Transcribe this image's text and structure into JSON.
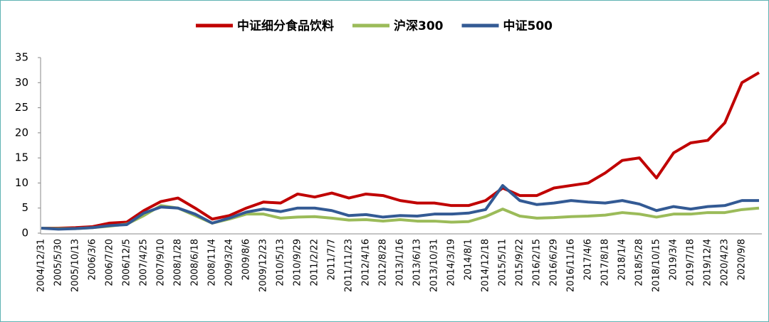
{
  "chart_data": {
    "type": "line",
    "categories": [
      "2004/12/31",
      "2005/5/30",
      "2005/10/13",
      "2006/3/6",
      "2006/7/20",
      "2006/12/5",
      "2007/4/25",
      "2007/9/10",
      "2008/1/28",
      "2008/6/18",
      "2008/11/4",
      "2009/3/24",
      "2009/8/6",
      "2009/12/23",
      "2010/5/13",
      "2010/9/29",
      "2011/2/22",
      "2011/7/7",
      "2011/11/23",
      "2012/4/16",
      "2012/8/28",
      "2013/1/16",
      "2013/6/13",
      "2013/10/31",
      "2014/3/19",
      "2014/8/1",
      "2014/12/18",
      "2015/5/11",
      "2015/9/22",
      "2016/2/15",
      "2016/6/29",
      "2016/11/16",
      "2017/4/6",
      "2017/8/18",
      "2018/1/4",
      "2018/5/28",
      "2018/10/15",
      "2019/3/4",
      "2019/7/18",
      "2019/12/4",
      "2020/4/23",
      "2020/9/8",
      null
    ],
    "series": [
      {
        "name": "中证细分食品饮料",
        "color": "#c00000",
        "values": [
          1,
          1,
          1.1,
          1.3,
          2,
          2.2,
          4.5,
          6.3,
          7,
          5,
          2.8,
          3.5,
          5,
          6.2,
          6,
          7.8,
          7.2,
          8,
          7,
          7.8,
          7.5,
          6.5,
          6,
          6,
          5.5,
          5.5,
          6.5,
          9,
          7.5,
          7.5,
          9,
          9.5,
          10,
          12,
          14.5,
          15,
          11,
          16,
          18,
          18.5,
          22,
          30,
          32
        ]
      },
      {
        "name": "沪深300",
        "color": "#9bbb59",
        "values": [
          1,
          0.9,
          0.9,
          1.1,
          1.4,
          1.8,
          3.5,
          5.5,
          5,
          3.5,
          2,
          2.8,
          3.8,
          3.8,
          3,
          3.2,
          3.3,
          3,
          2.6,
          2.7,
          2.4,
          2.7,
          2.4,
          2.4,
          2.2,
          2.3,
          3.3,
          4.8,
          3.4,
          3,
          3.1,
          3.3,
          3.4,
          3.6,
          4.1,
          3.8,
          3.2,
          3.8,
          3.8,
          4.1,
          4.1,
          4.7,
          5
        ]
      },
      {
        "name": "中证500",
        "color": "#335a94",
        "values": [
          1,
          0.8,
          0.9,
          1.1,
          1.5,
          1.7,
          4,
          5.2,
          5,
          3.8,
          2,
          3,
          4.2,
          4.8,
          4.3,
          5,
          5,
          4.5,
          3.5,
          3.7,
          3.2,
          3.5,
          3.4,
          3.8,
          3.8,
          4,
          4.7,
          9.5,
          6.5,
          5.7,
          6,
          6.5,
          6.2,
          6,
          6.5,
          5.8,
          4.5,
          5.3,
          4.8,
          5.3,
          5.5,
          6.5,
          6.5
        ]
      }
    ],
    "ylim": [
      0,
      35
    ],
    "yticks": [
      0,
      5,
      10,
      15,
      20,
      25,
      30,
      35
    ],
    "grid": false
  }
}
